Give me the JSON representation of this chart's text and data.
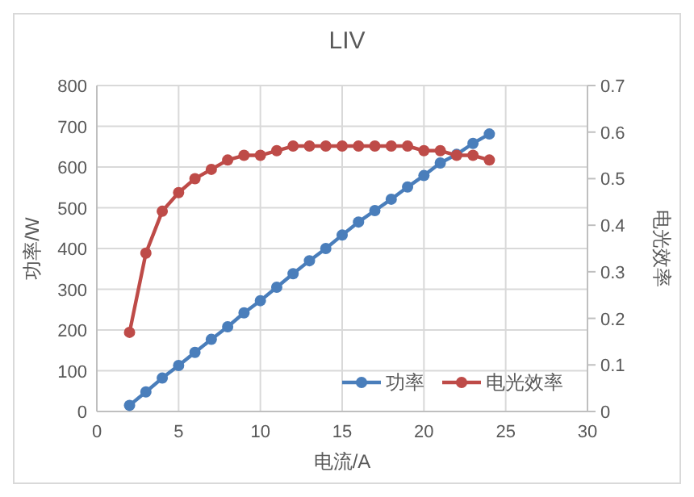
{
  "chart_data": {
    "type": "line",
    "title": "LIV",
    "xlabel": "电流/A",
    "ylabel": "功率/W",
    "y2label": "电光效率",
    "xlim": [
      0,
      30
    ],
    "xticks": [
      0,
      5,
      10,
      15,
      20,
      25,
      30
    ],
    "ylim": [
      0,
      800
    ],
    "yticks": [
      0,
      100,
      200,
      300,
      400,
      500,
      600,
      700,
      800
    ],
    "y2lim": [
      0,
      0.7
    ],
    "y2ticks": [
      0,
      0.1,
      0.2,
      0.3,
      0.4,
      0.5,
      0.6,
      0.7
    ],
    "x": [
      2,
      3,
      4,
      5,
      6,
      7,
      8,
      9,
      10,
      11,
      12,
      13,
      14,
      15,
      16,
      17,
      18,
      19,
      20,
      21,
      22,
      23,
      24
    ],
    "series": [
      {
        "name": "功率",
        "color": "#4a7ebb",
        "values": [
          15,
          48,
          82,
          113,
          145,
          177,
          208,
          242,
          272,
          305,
          338,
          370,
          400,
          433,
          465,
          493,
          521,
          551,
          579,
          610,
          631,
          658,
          681
        ]
      },
      {
        "name": "电光效率",
        "color": "#be4b48",
        "axis": "y2",
        "values": [
          0.17,
          0.34,
          0.43,
          0.47,
          0.5,
          0.52,
          0.54,
          0.55,
          0.55,
          0.56,
          0.57,
          0.57,
          0.57,
          0.57,
          0.57,
          0.57,
          0.57,
          0.57,
          0.56,
          0.56,
          0.55,
          0.55,
          0.54
        ]
      }
    ],
    "grid": true,
    "legend": "bottom right",
    "marker": "circle",
    "line_style": "solid"
  }
}
